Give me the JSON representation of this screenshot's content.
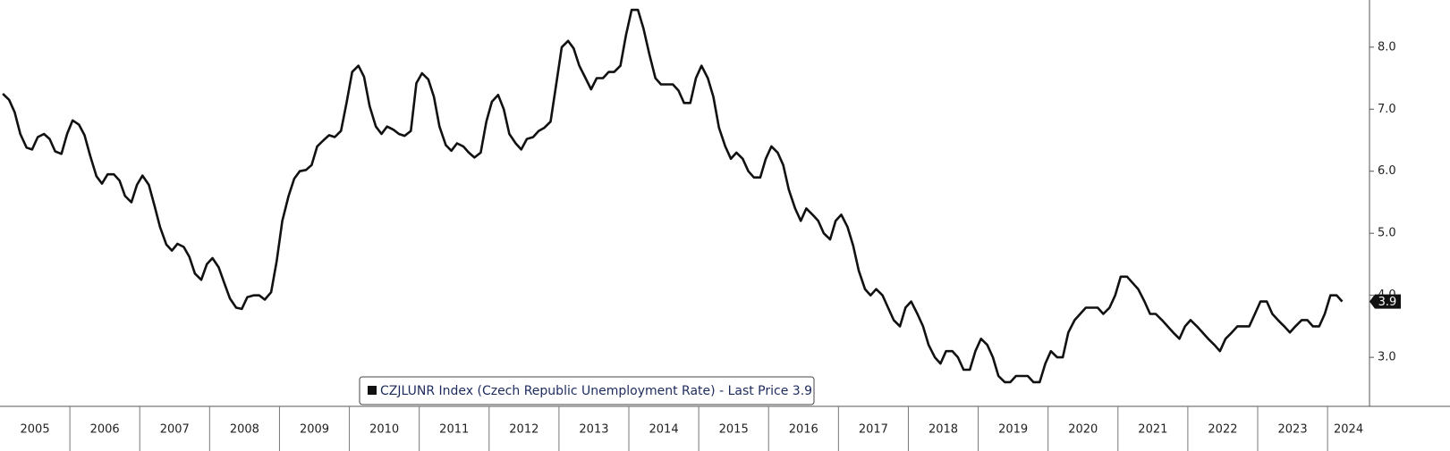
{
  "chart_data": {
    "type": "line",
    "x": [
      2005.04,
      2005.13,
      2005.21,
      2005.29,
      2005.38,
      2005.46,
      2005.54,
      2005.63,
      2005.71,
      2005.79,
      2005.88,
      2005.96,
      2006.04,
      2006.13,
      2006.21,
      2006.29,
      2006.38,
      2006.46,
      2006.54,
      2006.63,
      2006.71,
      2006.79,
      2006.88,
      2006.96,
      2007.04,
      2007.13,
      2007.21,
      2007.29,
      2007.38,
      2007.46,
      2007.54,
      2007.63,
      2007.71,
      2007.79,
      2007.88,
      2007.96,
      2008.04,
      2008.13,
      2008.21,
      2008.29,
      2008.38,
      2008.46,
      2008.54,
      2008.63,
      2008.71,
      2008.79,
      2008.88,
      2008.96,
      2009.04,
      2009.13,
      2009.21,
      2009.29,
      2009.38,
      2009.46,
      2009.54,
      2009.63,
      2009.71,
      2009.79,
      2009.88,
      2009.96,
      2010.04,
      2010.13,
      2010.21,
      2010.29,
      2010.38,
      2010.46,
      2010.54,
      2010.63,
      2010.71,
      2010.79,
      2010.88,
      2010.96,
      2011.04,
      2011.13,
      2011.21,
      2011.29,
      2011.38,
      2011.46,
      2011.54,
      2011.63,
      2011.71,
      2011.79,
      2011.88,
      2011.96,
      2012.04,
      2012.13,
      2012.21,
      2012.29,
      2012.38,
      2012.46,
      2012.54,
      2012.63,
      2012.71,
      2012.79,
      2012.88,
      2012.96,
      2013.04,
      2013.13,
      2013.21,
      2013.29,
      2013.38,
      2013.46,
      2013.54,
      2013.63,
      2013.71,
      2013.79,
      2013.88,
      2013.96,
      2014.04,
      2014.13,
      2014.21,
      2014.29,
      2014.38,
      2014.46,
      2014.54,
      2014.63,
      2014.71,
      2014.79,
      2014.88,
      2014.96,
      2015.04,
      2015.13,
      2015.21,
      2015.29,
      2015.38,
      2015.46,
      2015.54,
      2015.63,
      2015.71,
      2015.79,
      2015.88,
      2015.96,
      2016.04,
      2016.13,
      2016.21,
      2016.29,
      2016.38,
      2016.46,
      2016.54,
      2016.63,
      2016.71,
      2016.79,
      2016.88,
      2016.96,
      2017.04,
      2017.13,
      2017.21,
      2017.29,
      2017.38,
      2017.46,
      2017.54,
      2017.63,
      2017.71,
      2017.79,
      2017.88,
      2017.96,
      2018.04,
      2018.13,
      2018.21,
      2018.29,
      2018.38,
      2018.46,
      2018.54,
      2018.63,
      2018.71,
      2018.79,
      2018.88,
      2018.96,
      2019.04,
      2019.13,
      2019.21,
      2019.29,
      2019.38,
      2019.46,
      2019.54,
      2019.63,
      2019.71,
      2019.79,
      2019.88,
      2019.96,
      2020.04,
      2020.13,
      2020.21,
      2020.29,
      2020.38,
      2020.46,
      2020.54,
      2020.63,
      2020.71,
      2020.79,
      2020.88,
      2020.96,
      2021.04,
      2021.13,
      2021.21,
      2021.29,
      2021.38,
      2021.46,
      2021.54,
      2021.63,
      2021.71,
      2021.79,
      2021.88,
      2021.96,
      2022.04,
      2022.13,
      2022.21,
      2022.29,
      2022.38,
      2022.46,
      2022.54,
      2022.63,
      2022.71,
      2022.79,
      2022.88,
      2022.96,
      2023.04,
      2023.13,
      2023.21,
      2023.29,
      2023.38,
      2023.46,
      2023.54,
      2023.63,
      2023.71,
      2023.79,
      2023.88,
      2023.96,
      2024.04,
      2024.13,
      2024.21
    ],
    "series": [
      {
        "name": "CZJLUNR Index (Czech Republic Unemployment Rate) - Last Price 3.9",
        "color": "#111111",
        "values": [
          7.25,
          7.15,
          6.95,
          6.6,
          6.38,
          6.35,
          6.55,
          6.6,
          6.52,
          6.32,
          6.28,
          6.6,
          6.82,
          6.75,
          6.58,
          6.25,
          5.92,
          5.8,
          5.95,
          5.95,
          5.85,
          5.6,
          5.5,
          5.78,
          5.93,
          5.78,
          5.45,
          5.1,
          4.82,
          4.72,
          4.83,
          4.78,
          4.62,
          4.35,
          4.25,
          4.5,
          4.6,
          4.45,
          4.2,
          3.95,
          3.8,
          3.78,
          3.97,
          4.0,
          4.0,
          3.93,
          4.05,
          4.55,
          5.2,
          5.6,
          5.88,
          6.0,
          6.02,
          6.1,
          6.4,
          6.5,
          6.58,
          6.55,
          6.65,
          7.1,
          7.6,
          7.7,
          7.52,
          7.05,
          6.72,
          6.6,
          6.72,
          6.67,
          6.6,
          6.57,
          6.65,
          7.42,
          7.58,
          7.48,
          7.2,
          6.72,
          6.42,
          6.33,
          6.45,
          6.4,
          6.3,
          6.22,
          6.3,
          6.8,
          7.12,
          7.23,
          7.0,
          6.6,
          6.45,
          6.35,
          6.52,
          6.55,
          6.65,
          6.7,
          6.8,
          7.4,
          8.0,
          8.1,
          7.98,
          7.7,
          7.5,
          7.32,
          7.5,
          7.5,
          7.6,
          7.6,
          7.7,
          8.2,
          8.6,
          8.6,
          8.3,
          7.9,
          7.5,
          7.4,
          7.4,
          7.4,
          7.3,
          7.1,
          7.1,
          7.5,
          7.7,
          7.5,
          7.2,
          6.7,
          6.4,
          6.2,
          6.3,
          6.2,
          6.0,
          5.9,
          5.9,
          6.2,
          6.4,
          6.3,
          6.1,
          5.7,
          5.4,
          5.2,
          5.4,
          5.3,
          5.2,
          5.0,
          4.9,
          5.2,
          5.3,
          5.1,
          4.8,
          4.4,
          4.1,
          4.0,
          4.1,
          4.0,
          3.8,
          3.6,
          3.5,
          3.8,
          3.9,
          3.7,
          3.5,
          3.2,
          3.0,
          2.9,
          3.1,
          3.1,
          3.0,
          2.8,
          2.8,
          3.1,
          3.3,
          3.2,
          3.0,
          2.7,
          2.6,
          2.6,
          2.7,
          2.7,
          2.7,
          2.6,
          2.6,
          2.9,
          3.1,
          3.0,
          3.0,
          3.4,
          3.6,
          3.7,
          3.8,
          3.8,
          3.8,
          3.7,
          3.8,
          4.0,
          4.3,
          4.3,
          4.2,
          4.1,
          3.9,
          3.7,
          3.7,
          3.6,
          3.5,
          3.4,
          3.3,
          3.5,
          3.6,
          3.5,
          3.4,
          3.3,
          3.2,
          3.1,
          3.3,
          3.4,
          3.5,
          3.5,
          3.5,
          3.7,
          3.9,
          3.9,
          3.7,
          3.6,
          3.5,
          3.4,
          3.5,
          3.6,
          3.6,
          3.5,
          3.5,
          3.7,
          4.0,
          4.0,
          3.9
        ]
      }
    ],
    "last_value_label": "3.9",
    "xlim": [
      2005,
      2024.6
    ],
    "xticks": [
      2005,
      2006,
      2007,
      2008,
      2009,
      2010,
      2011,
      2012,
      2013,
      2014,
      2015,
      2016,
      2017,
      2018,
      2019,
      2020,
      2021,
      2022,
      2023,
      2024
    ],
    "ylim": [
      2.21,
      8.76
    ],
    "yticks": [
      {
        "value": 3,
        "label": "3.0"
      },
      {
        "value": 4,
        "label": "4.0"
      },
      {
        "value": 5,
        "label": "5.0"
      },
      {
        "value": 6,
        "label": "6.0"
      },
      {
        "value": 7,
        "label": "7.0"
      },
      {
        "value": 8,
        "label": "8.0"
      }
    ]
  }
}
